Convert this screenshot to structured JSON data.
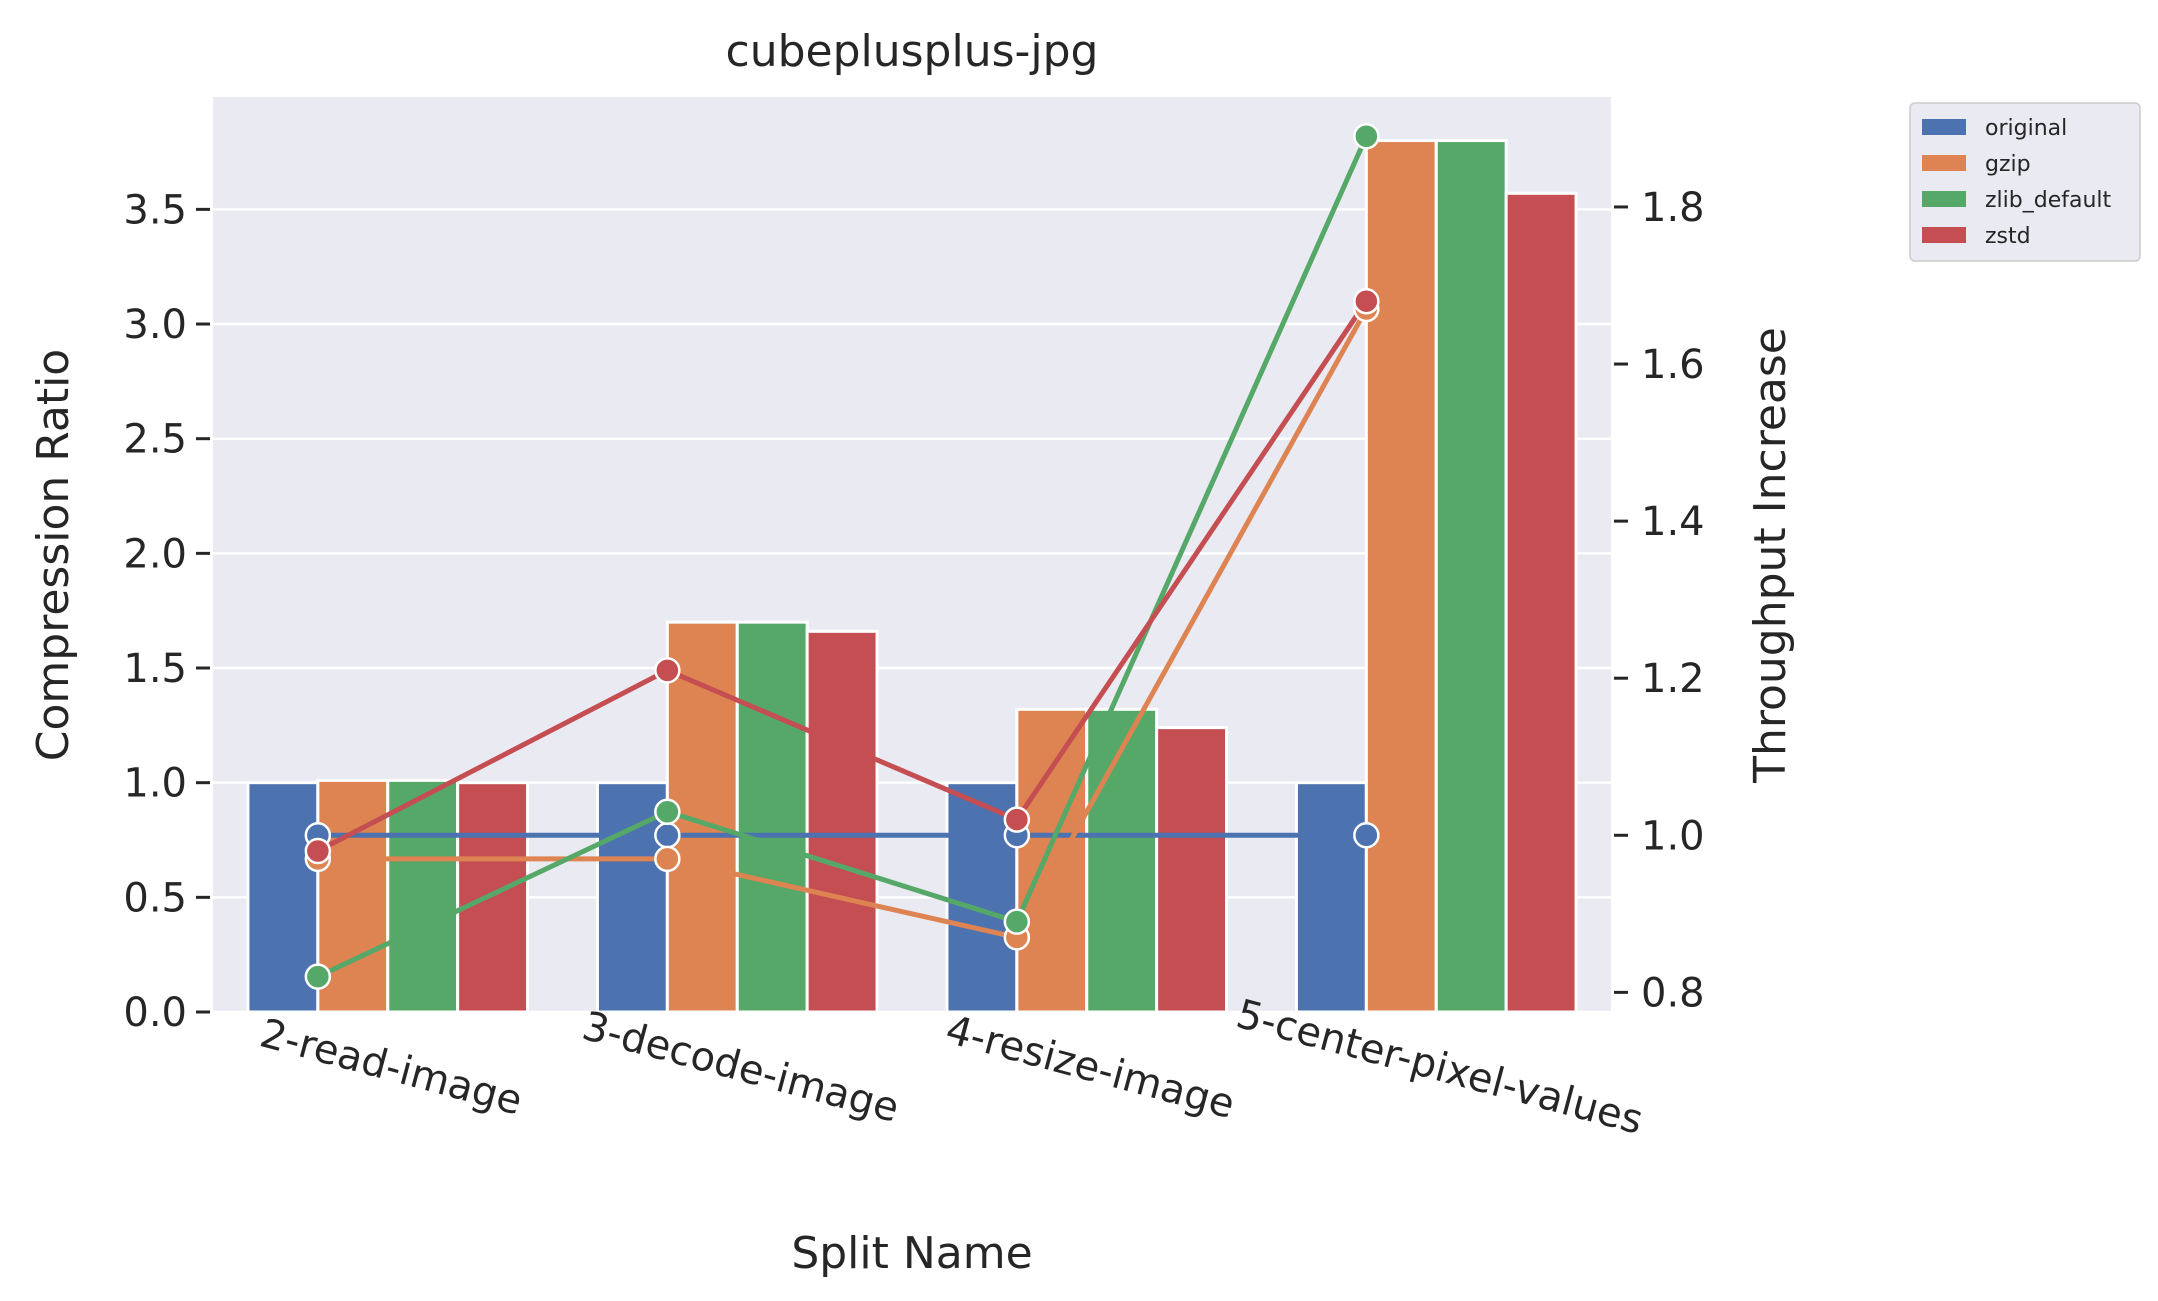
{
  "chart_data": {
    "type": "bar",
    "title": "cubeplusplus-jpg",
    "xlabel": "Split Name",
    "ylabel": "Compression Ratio",
    "y2label": "Throughput Increase",
    "categories": [
      "2-read-image",
      "3-decode-image",
      "4-resize-image",
      "5-center-pixel-values"
    ],
    "ylim": [
      0,
      3.99
    ],
    "y2lim": [
      0.775,
      1.94
    ],
    "yticks": [
      "0.0",
      "0.5",
      "1.0",
      "1.5",
      "2.0",
      "2.5",
      "3.0",
      "3.5"
    ],
    "y2ticks": [
      "0.8",
      "1.0",
      "1.2",
      "1.4",
      "1.6",
      "1.8"
    ],
    "grid": true,
    "legend_position": "outside-top-right",
    "series": [
      {
        "name": "original",
        "color": "#4c72b0",
        "values": [
          1.0,
          1.0,
          1.0,
          1.0
        ],
        "throughput": [
          1.0,
          1.0,
          1.0,
          1.0
        ]
      },
      {
        "name": "gzip",
        "color": "#dd8452",
        "values": [
          1.01,
          1.7,
          1.32,
          3.8
        ],
        "throughput": [
          0.97,
          0.97,
          0.87,
          1.67
        ]
      },
      {
        "name": "zlib_default",
        "color": "#55a868",
        "values": [
          1.01,
          1.7,
          1.32,
          3.8
        ],
        "throughput": [
          0.82,
          1.03,
          0.89,
          1.89
        ]
      },
      {
        "name": "zstd",
        "color": "#c44e52",
        "values": [
          1.0,
          1.66,
          1.24,
          3.57
        ],
        "throughput": [
          0.98,
          1.21,
          1.02,
          1.68
        ]
      }
    ]
  }
}
